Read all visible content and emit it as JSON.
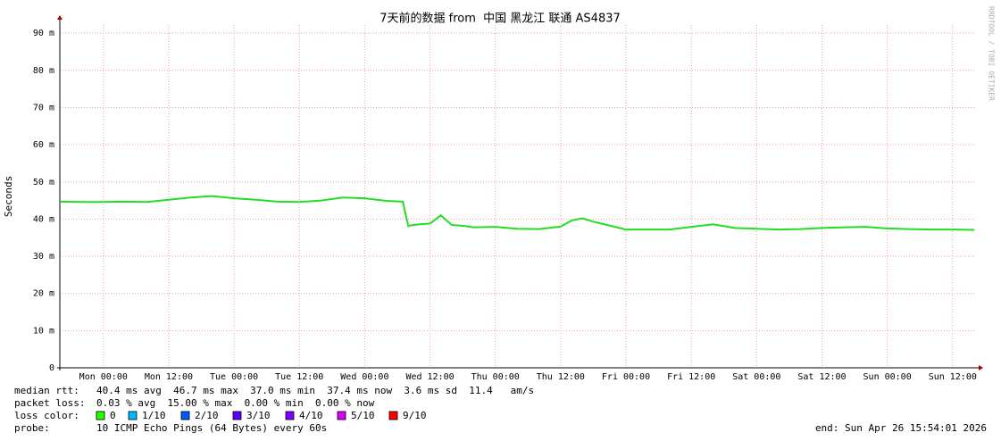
{
  "chart_data": {
    "type": "line",
    "title": "7天前的数据 from  中国 黑龙江 联通 AS4837",
    "y_label": "Seconds",
    "watermark": "RRDTOOL / TOBI OETIKER",
    "x": [
      -8,
      -4,
      0,
      4,
      8,
      12,
      16,
      20,
      24,
      28,
      32,
      36,
      40,
      44,
      48,
      52,
      55,
      56,
      58,
      60,
      62,
      64,
      66,
      68,
      72,
      76,
      80,
      84,
      86,
      88,
      90,
      92,
      96,
      100,
      104,
      108,
      112,
      116,
      120,
      124,
      128,
      132,
      136,
      140,
      144,
      148,
      152,
      156,
      160
    ],
    "series": [
      {
        "name": "median rtt:",
        "color": "#22dd22",
        "values": [
          44.7,
          44.6,
          44.6,
          44.7,
          44.6,
          45.2,
          45.8,
          46.2,
          45.6,
          45.2,
          44.7,
          44.6,
          45,
          45.8,
          45.6,
          44.9,
          44.7,
          38.2,
          38.6,
          38.8,
          41,
          38.4,
          38.2,
          37.8,
          37.9,
          37.4,
          37.3,
          38,
          39.6,
          40.2,
          39.3,
          38.6,
          37.2,
          37.2,
          37.2,
          37.9,
          38.6,
          37.6,
          37.4,
          37.2,
          37.3,
          37.6,
          37.8,
          37.9,
          37.5,
          37.3,
          37.2,
          37.2,
          37.1
        ]
      }
    ],
    "median_stats": "40.4 ms avg  46.7 ms max  37.0 ms min  37.4 ms now  3.6 ms sd  11.4   am/s",
    "packet_loss_label": "packet loss:",
    "packet_loss_stats": "0.03 % avg  15.00 % max  0.00 % min  0.00 % now",
    "loss_color_label": "loss color:",
    "loss_colors": [
      {
        "label": "0",
        "color": "#26ff00"
      },
      {
        "label": "1/10",
        "color": "#00b8ff"
      },
      {
        "label": "2/10",
        "color": "#0059ff"
      },
      {
        "label": "3/10",
        "color": "#5e00ff"
      },
      {
        "label": "4/10",
        "color": "#7e00ff"
      },
      {
        "label": "5/10",
        "color": "#dd00ff"
      },
      {
        "label": "9/10",
        "color": "#ff0000"
      }
    ],
    "probe_label": "probe:",
    "probe": "10 ICMP Echo Pings (64 Bytes) every 60s",
    "end": "end: Sun Apr 26 15:54:01 2026",
    "xlim": [
      -8,
      160.3
    ],
    "ylim": [
      0,
      92.2
    ],
    "yticks": [
      0,
      {
        "value": 10,
        "label": "10 m"
      },
      {
        "value": 20,
        "label": "20 m"
      },
      {
        "value": 30,
        "label": "30 m"
      },
      {
        "value": 40,
        "label": "40 m"
      },
      {
        "value": 50,
        "label": "50 m"
      },
      {
        "value": 60,
        "label": "60 m"
      },
      {
        "value": 70,
        "label": "70 m"
      },
      {
        "value": 80,
        "label": "80 m"
      },
      {
        "value": 90,
        "label": "90 m"
      }
    ],
    "xticks": [
      {
        "value": 0,
        "label": "Mon 00:00"
      },
      {
        "value": 12,
        "label": "Mon 12:00"
      },
      {
        "value": 24,
        "label": "Tue 00:00"
      },
      {
        "value": 36,
        "label": "Tue 12:00"
      },
      {
        "value": 48,
        "label": "Wed 00:00"
      },
      {
        "value": 60,
        "label": "Wed 12:00"
      },
      {
        "value": 72,
        "label": "Thu 00:00"
      },
      {
        "value": 84,
        "label": "Thu 12:00"
      },
      {
        "value": 96,
        "label": "Fri 00:00"
      },
      {
        "value": 108,
        "label": "Fri 12:00"
      },
      {
        "value": 120,
        "label": "Sat 00:00"
      },
      {
        "value": 132,
        "label": "Sat 12:00"
      },
      {
        "value": 144,
        "label": "Sun 00:00"
      },
      {
        "value": 156,
        "label": "Sun 12:00"
      }
    ],
    "grid": true
  }
}
